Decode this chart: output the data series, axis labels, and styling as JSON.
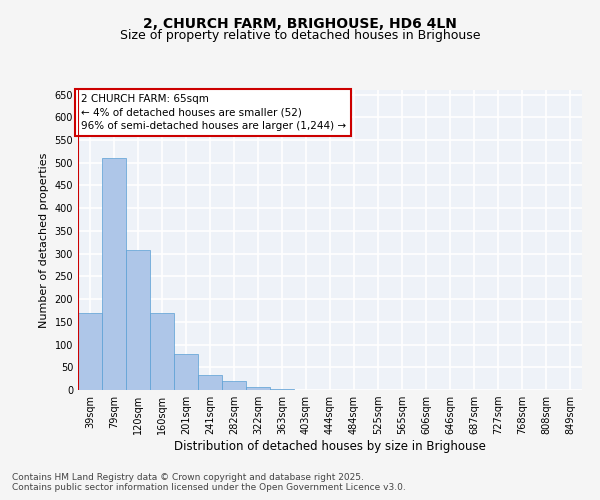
{
  "title": "2, CHURCH FARM, BRIGHOUSE, HD6 4LN",
  "subtitle": "Size of property relative to detached houses in Brighouse",
  "xlabel": "Distribution of detached houses by size in Brighouse",
  "ylabel": "Number of detached properties",
  "categories": [
    "39sqm",
    "79sqm",
    "120sqm",
    "160sqm",
    "201sqm",
    "241sqm",
    "282sqm",
    "322sqm",
    "363sqm",
    "403sqm",
    "444sqm",
    "484sqm",
    "525sqm",
    "565sqm",
    "606sqm",
    "646sqm",
    "687sqm",
    "727sqm",
    "768sqm",
    "808sqm",
    "849sqm"
  ],
  "values": [
    170,
    510,
    308,
    170,
    80,
    34,
    20,
    6,
    2,
    0,
    0,
    0,
    0,
    0,
    0,
    0,
    0,
    0,
    0,
    0,
    0
  ],
  "bar_color": "#aec6e8",
  "bar_edge_color": "#5a9fd4",
  "vline_color": "#cc0000",
  "annotation_text": "2 CHURCH FARM: 65sqm\n← 4% of detached houses are smaller (52)\n96% of semi-detached houses are larger (1,244) →",
  "annotation_box_color": "#ffffff",
  "annotation_box_edge_color": "#cc0000",
  "annotation_fontsize": 7.5,
  "ylim": [
    0,
    660
  ],
  "yticks": [
    0,
    50,
    100,
    150,
    200,
    250,
    300,
    350,
    400,
    450,
    500,
    550,
    600,
    650
  ],
  "background_color": "#eef2f8",
  "grid_color": "#ffffff",
  "title_fontsize": 10,
  "subtitle_fontsize": 9,
  "xlabel_fontsize": 8.5,
  "ylabel_fontsize": 8,
  "tick_fontsize": 7,
  "footer_line1": "Contains HM Land Registry data © Crown copyright and database right 2025.",
  "footer_line2": "Contains public sector information licensed under the Open Government Licence v3.0.",
  "footer_fontsize": 6.5
}
